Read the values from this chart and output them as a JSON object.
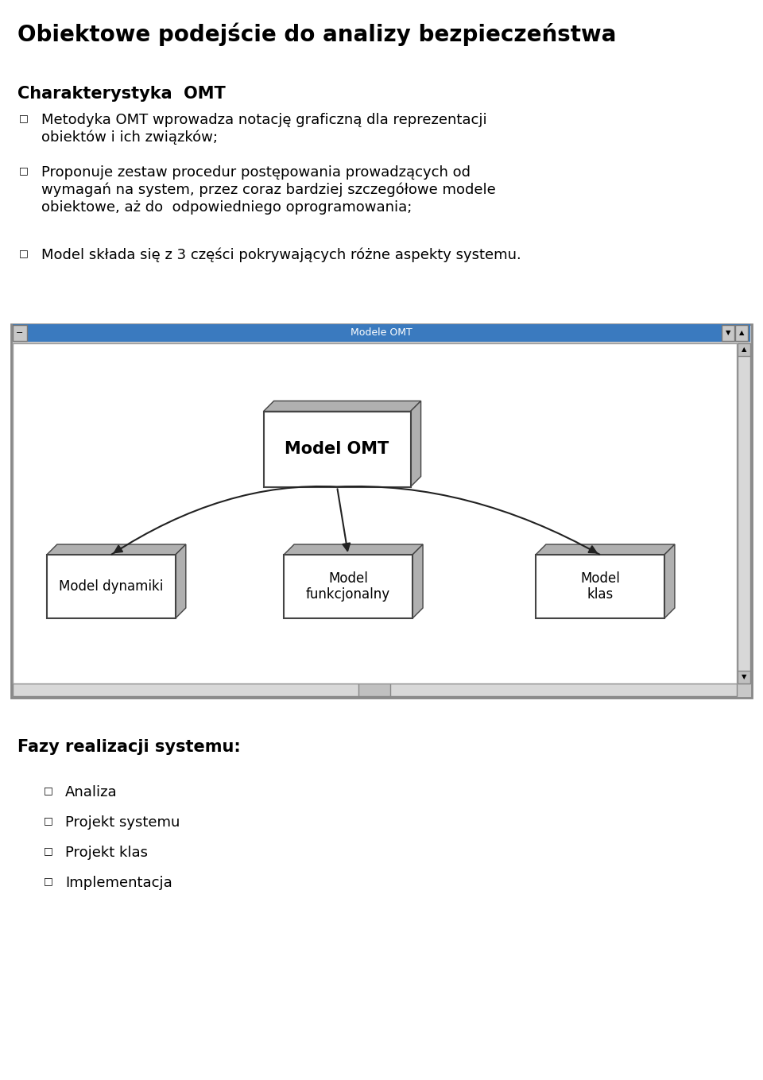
{
  "title": "Obiektowe podejście do analizy bezpieczeństwa",
  "title_fontsize": 20,
  "background_color": "#ffffff",
  "section1_header": "Charakterystyka  OMT",
  "section1_header_fontsize": 15,
  "section1_bullets": [
    "Metodyka OMT wprowadza notację graficzną dla reprezentacji obiektów i ich związków;",
    "Proponuje zestaw procedur postępowania prowadzących od wymagań na system, przez coraz bardziej szczegółowe modele obiektowe, aż do  odpowiedniego oprogramowania;",
    "Model składa się z 3 części pokrywających różne aspekty systemu."
  ],
  "bullet_fontsize": 13,
  "window_title": "Modele OMT",
  "window_title_bg": "#3a7abf",
  "window_title_color": "#ffffff",
  "window_bg": "#ffffff",
  "window_border_outer": "#aaaaaa",
  "window_frame_color": "#c8c8c8",
  "center_box_label": "Model OMT",
  "child_boxes": [
    "Model dynamiki",
    "Model\nfunkcjonalny",
    "Model\nklas"
  ],
  "box_face_color": "#ffffff",
  "box_edge_color": "#444444",
  "box_shadow_color": "#b0b0b0",
  "arrow_color": "#222222",
  "section2_header": "Fazy realizacji systemu:",
  "section2_header_fontsize": 15,
  "section2_bullets": [
    "Analiza",
    "Projekt systemu",
    "Projekt klas",
    "Implementacja"
  ],
  "section2_bullet_fontsize": 13,
  "text_color": "#000000",
  "font_family": "DejaVu Sans"
}
